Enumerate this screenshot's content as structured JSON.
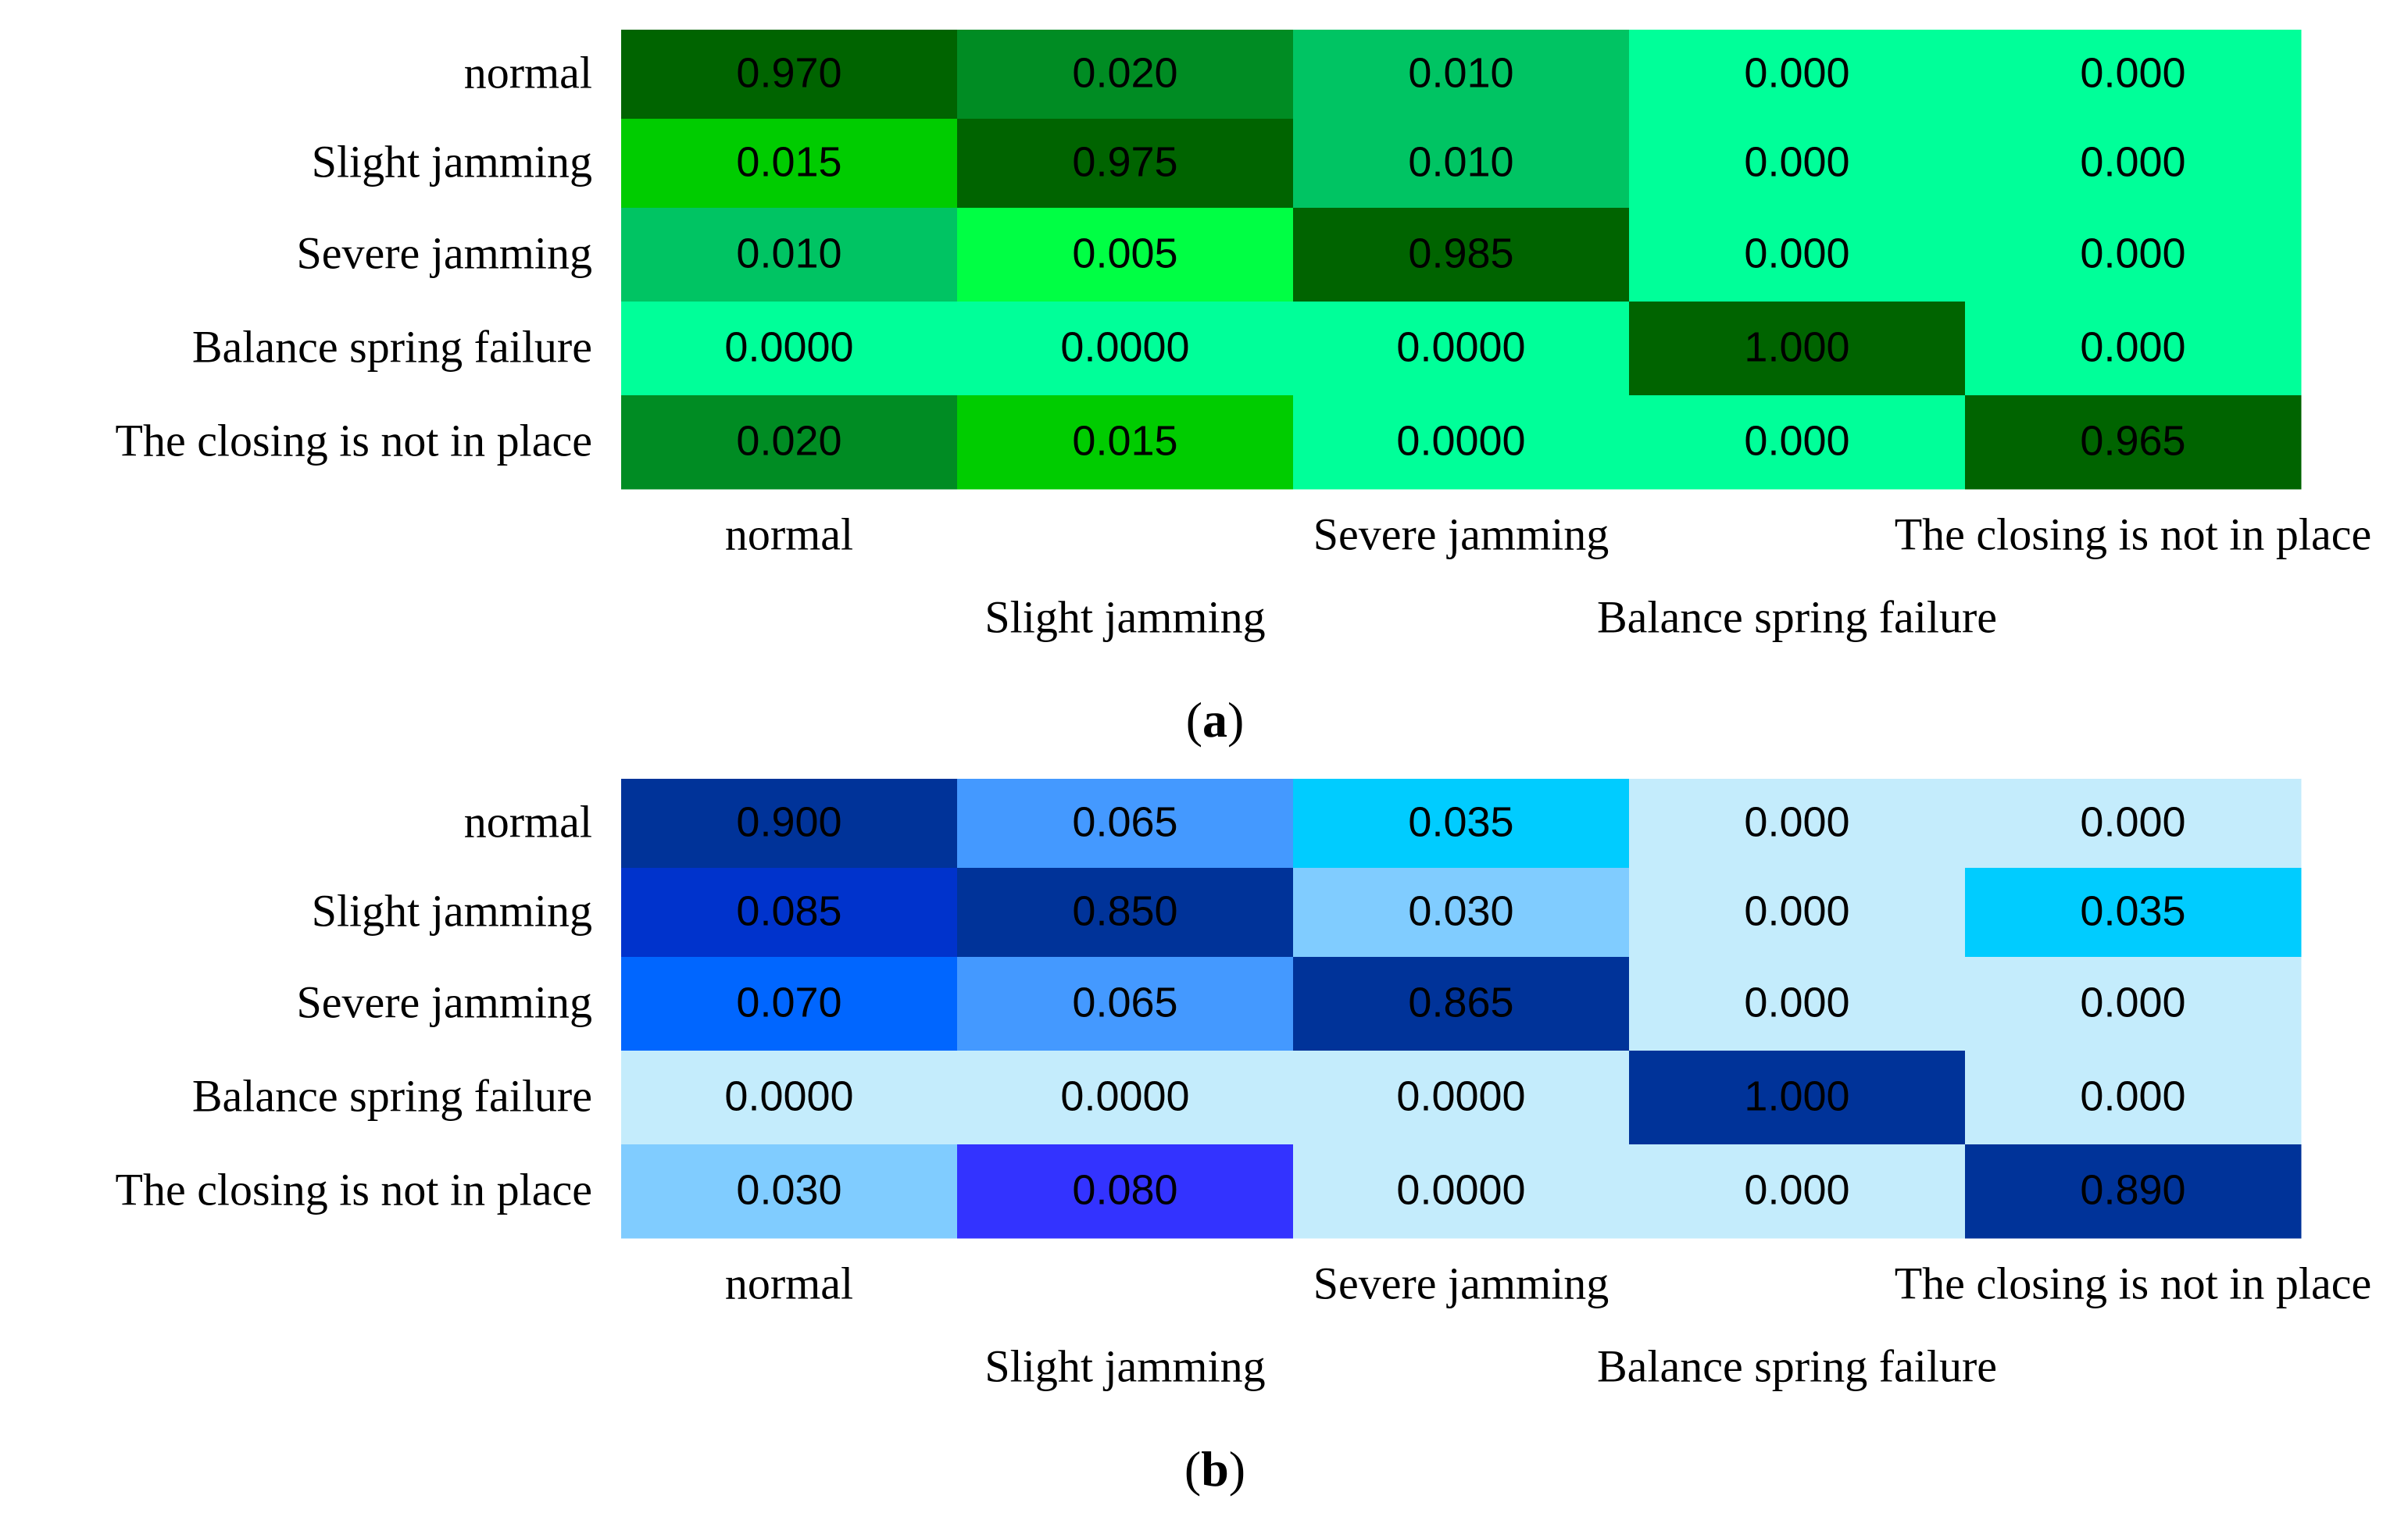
{
  "chart_data": [
    {
      "type": "heatmap",
      "panel_label": "a",
      "rows": [
        "normal",
        "Slight jamming",
        "Severe jamming",
        "Balance spring failure",
        "The closing is not in place"
      ],
      "columns": [
        "normal",
        "Slight jamming",
        "Severe jamming",
        "Balance spring failure",
        "The closing is not in place"
      ],
      "cell_text": [
        [
          "0.970",
          "0.020",
          "0.010",
          "0.000",
          "0.000"
        ],
        [
          "0.015",
          "0.975",
          "0.010",
          "0.000",
          "0.000"
        ],
        [
          "0.010",
          "0.005",
          "0.985",
          "0.000",
          "0.000"
        ],
        [
          "0.0000",
          "0.0000",
          "0.0000",
          "1.000",
          "0.000"
        ],
        [
          "0.020",
          "0.015",
          "0.0000",
          "0.000",
          "0.965"
        ]
      ],
      "values": [
        [
          0.97,
          0.02,
          0.01,
          0.0,
          0.0
        ],
        [
          0.015,
          0.975,
          0.01,
          0.0,
          0.0
        ],
        [
          0.01,
          0.005,
          0.985,
          0.0,
          0.0
        ],
        [
          0.0,
          0.0,
          0.0,
          1.0,
          0.0
        ],
        [
          0.02,
          0.015,
          0.0,
          0.0,
          0.965
        ]
      ],
      "cell_colors": [
        [
          "#006400",
          "#008C23",
          "#00C463",
          "#00FF99",
          "#00FF99"
        ],
        [
          "#00CC00",
          "#006400",
          "#00C463",
          "#00FF99",
          "#00FF99"
        ],
        [
          "#00C463",
          "#00FF44",
          "#006400",
          "#00FF99",
          "#00FF99"
        ],
        [
          "#00FF99",
          "#00FF99",
          "#00FF99",
          "#006400",
          "#00FF99"
        ],
        [
          "#008C23",
          "#00CC00",
          "#00FF99",
          "#00FF99",
          "#006400"
        ]
      ]
    },
    {
      "type": "heatmap",
      "panel_label": "b",
      "rows": [
        "normal",
        "Slight jamming",
        "Severe jamming",
        "Balance spring failure",
        "The closing is not in place"
      ],
      "columns": [
        "normal",
        "Slight jamming",
        "Severe jamming",
        "Balance spring failure",
        "The closing is not in place"
      ],
      "cell_text": [
        [
          "0.900",
          "0.065",
          "0.035",
          "0.000",
          "0.000"
        ],
        [
          "0.085",
          "0.850",
          "0.030",
          "0.000",
          "0.035"
        ],
        [
          "0.070",
          "0.065",
          "0.865",
          "0.000",
          "0.000"
        ],
        [
          "0.0000",
          "0.0000",
          "0.0000",
          "1.000",
          "0.000"
        ],
        [
          "0.030",
          "0.080",
          "0.0000",
          "0.000",
          "0.890"
        ]
      ],
      "values": [
        [
          0.9,
          0.065,
          0.035,
          0.0,
          0.0
        ],
        [
          0.085,
          0.85,
          0.03,
          0.0,
          0.035
        ],
        [
          0.07,
          0.065,
          0.865,
          0.0,
          0.0
        ],
        [
          0.0,
          0.0,
          0.0,
          1.0,
          0.0
        ],
        [
          0.03,
          0.08,
          0.0,
          0.0,
          0.89
        ]
      ],
      "cell_colors": [
        [
          "#003399",
          "#4499FF",
          "#00CCFF",
          "#C4ECFC",
          "#C4ECFC"
        ],
        [
          "#0033CC",
          "#003399",
          "#80CCFF",
          "#C4ECFC",
          "#00CCFF"
        ],
        [
          "#0066FF",
          "#4499FF",
          "#003399",
          "#C4ECFC",
          "#C4ECFC"
        ],
        [
          "#C4ECFC",
          "#C4ECFC",
          "#C4ECFC",
          "#003399",
          "#C4ECFC"
        ],
        [
          "#80CCFF",
          "#3333FF",
          "#C4ECFC",
          "#C4ECFC",
          "#003399"
        ]
      ]
    }
  ]
}
